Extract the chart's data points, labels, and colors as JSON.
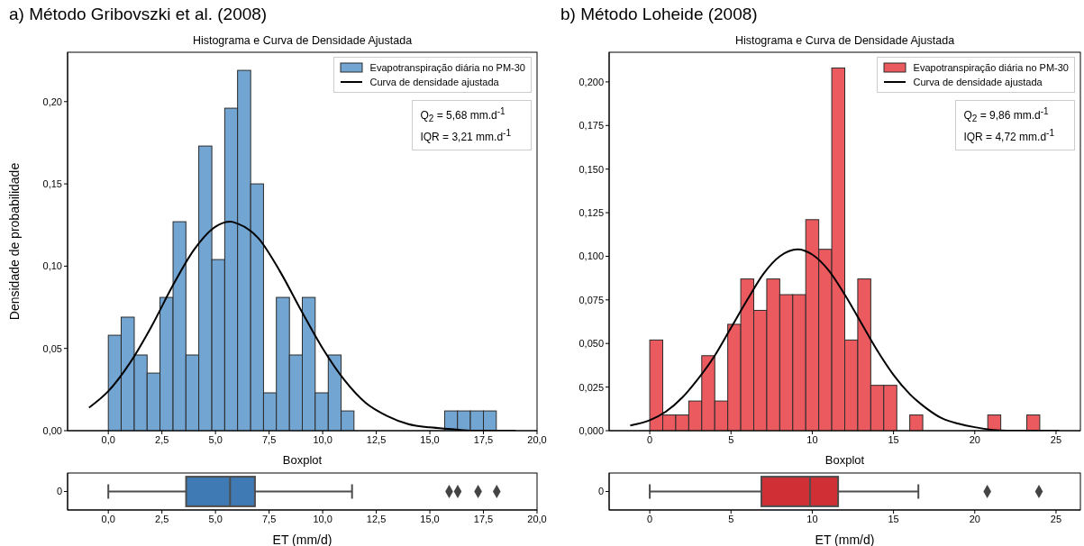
{
  "chart_data": [
    {
      "type": "histogram",
      "title": "a) Método Gribovszki et al. (2008)",
      "subtitle": "Histograma e Curva de Densidade Ajustada",
      "ylabel": "Densidade de probabilidade",
      "bins": [
        0,
        0.6,
        1.21,
        1.81,
        2.41,
        3.02,
        3.62,
        4.22,
        4.83,
        5.43,
        6.03,
        6.64,
        7.24,
        7.84,
        8.45,
        9.05,
        9.65,
        10.26,
        10.86,
        11.46,
        12.07,
        12.67,
        13.27,
        13.88,
        14.48,
        15.08,
        15.69,
        16.29,
        16.89,
        17.5,
        18.1
      ],
      "series": [
        {
          "name": "Evapotranspiração diária no PM-30",
          "type": "histogram",
          "color": "#72a5d1",
          "values": [
            0.058,
            0.069,
            0.046,
            0.035,
            0.081,
            0.127,
            0.046,
            0.173,
            0.104,
            0.196,
            0.219,
            0.15,
            0.023,
            0.081,
            0.046,
            0.081,
            0.023,
            0.046,
            0.012,
            0,
            0,
            0,
            0,
            0,
            0,
            0,
            0.012,
            0.012,
            0.012,
            0.012
          ]
        },
        {
          "name": "Curva de densidade ajustada",
          "type": "line",
          "color": "#000000",
          "x": [
            -0.9,
            0,
            1,
            2,
            3,
            4,
            5,
            5.7,
            6,
            7,
            8,
            9,
            10,
            11,
            12,
            13,
            14,
            15,
            16,
            17,
            18,
            19
          ],
          "values": [
            0.014,
            0.024,
            0.041,
            0.063,
            0.088,
            0.11,
            0.124,
            0.127,
            0.126,
            0.117,
            0.097,
            0.073,
            0.05,
            0.031,
            0.017,
            0.009,
            0.004,
            0.002,
            0.001,
            0,
            0,
            0
          ]
        }
      ],
      "xlim": [
        -1.9,
        20.0
      ],
      "xticks": [
        {
          "value": 0,
          "label": "0,0"
        },
        {
          "value": 2.5,
          "label": "2,5"
        },
        {
          "value": 5,
          "label": "5,0"
        },
        {
          "value": 7.5,
          "label": "7,5"
        },
        {
          "value": 10,
          "label": "10,0"
        },
        {
          "value": 12.5,
          "label": "12,5"
        },
        {
          "value": 15,
          "label": "15,0"
        },
        {
          "value": 17.5,
          "label": "17,5"
        },
        {
          "value": 20,
          "label": "20,0"
        }
      ],
      "ylim": [
        0,
        0.23
      ],
      "yticks": [
        {
          "value": 0,
          "label": "0,00"
        },
        {
          "value": 0.05,
          "label": "0,05"
        },
        {
          "value": 0.1,
          "label": "0,10"
        },
        {
          "value": 0.15,
          "label": "0,15"
        },
        {
          "value": 0.2,
          "label": "0,20"
        }
      ],
      "annotations": [
        "Q$_{2}$ = 5,68 mm.d$^{-1}$",
        "IQR = 3,21 mm.d$^{-1}$"
      ],
      "legend": "top right"
    },
    {
      "type": "histogram",
      "title": "b) Método Loheide (2008)",
      "subtitle": "Histograma e Curva de Densidade Ajustada",
      "bins": [
        0,
        0.8,
        1.6,
        2.4,
        3.2,
        4.0,
        4.8,
        5.6,
        6.4,
        7.2,
        8.0,
        8.8,
        9.6,
        10.4,
        11.2,
        12.0,
        12.8,
        13.6,
        14.4,
        15.2,
        16.0,
        16.8,
        17.6,
        18.4,
        19.2,
        20.0,
        20.8,
        21.6,
        22.4,
        23.2,
        24.0
      ],
      "series": [
        {
          "name": "Evapotranspiração diária no PM-30",
          "type": "histogram",
          "color": "#eb5a5f",
          "values": [
            0.052,
            0.009,
            0.009,
            0.017,
            0.043,
            0.017,
            0.061,
            0.087,
            0.069,
            0.087,
            0.078,
            0.078,
            0.121,
            0.104,
            0.208,
            0.052,
            0.087,
            0.026,
            0.026,
            0,
            0.009,
            0,
            0,
            0,
            0,
            0,
            0.009,
            0,
            0,
            0.009
          ]
        },
        {
          "name": "Curva de densidade ajustada",
          "type": "line",
          "color": "#000000",
          "x": [
            -1.2,
            0,
            1,
            2,
            3,
            4,
            5,
            6,
            7,
            8,
            9.1,
            10,
            11,
            12,
            13,
            14,
            15,
            16,
            17,
            18,
            19,
            20,
            22,
            25.2
          ],
          "values": [
            0.003,
            0.006,
            0.011,
            0.019,
            0.03,
            0.043,
            0.059,
            0.075,
            0.09,
            0.1,
            0.104,
            0.101,
            0.092,
            0.078,
            0.062,
            0.046,
            0.032,
            0.021,
            0.013,
            0.007,
            0.004,
            0.002,
            0,
            0
          ]
        }
      ],
      "xlim": [
        -2.5,
        26.5
      ],
      "xticks": [
        0,
        5,
        10,
        15,
        20,
        25
      ],
      "ylim": [
        0,
        0.217
      ],
      "yticks": [
        {
          "value": 0,
          "label": "0,000"
        },
        {
          "value": 0.025,
          "label": "0,025"
        },
        {
          "value": 0.05,
          "label": "0,050"
        },
        {
          "value": 0.075,
          "label": "0,075"
        },
        {
          "value": 0.1,
          "label": "0,100"
        },
        {
          "value": 0.125,
          "label": "0,125"
        },
        {
          "value": 0.15,
          "label": "0,150"
        },
        {
          "value": 0.175,
          "label": "0,175"
        },
        {
          "value": 0.2,
          "label": "0,200"
        }
      ],
      "annotations": [
        "Q$_{2}$ = 9,86 mm.d$^{-1}$",
        "IQR = 4,72 mm.d$^{-1}$"
      ],
      "legend": "top right"
    },
    {
      "type": "box",
      "title": "Boxplot",
      "xlabel": "ET (mm/d)",
      "orientation": "horizontal",
      "categories": [
        "0"
      ],
      "color": "#3f7ab5",
      "marker": "diamond",
      "boxes": [
        {
          "low": 0.0,
          "q1": 3.63,
          "median": 5.68,
          "q3": 6.84,
          "high": 11.37,
          "outliers": [
            15.9,
            16.3,
            17.25,
            18.12
          ]
        }
      ],
      "xlim": [
        -1.9,
        20.0
      ],
      "xticks": [
        {
          "value": 0,
          "label": "0,0"
        },
        {
          "value": 2.5,
          "label": "2,5"
        },
        {
          "value": 5,
          "label": "5,0"
        },
        {
          "value": 7.5,
          "label": "7,5"
        },
        {
          "value": 10,
          "label": "10,0"
        },
        {
          "value": 12.5,
          "label": "12,5"
        },
        {
          "value": 15,
          "label": "15,0"
        },
        {
          "value": 17.5,
          "label": "17,5"
        },
        {
          "value": 20,
          "label": "20,0"
        }
      ]
    },
    {
      "type": "box",
      "title": "Boxplot",
      "xlabel": "ET (mm/d)",
      "orientation": "horizontal",
      "categories": [
        "0"
      ],
      "color": "#d03035",
      "marker": "diamond",
      "boxes": [
        {
          "low": 0.0,
          "q1": 6.87,
          "median": 9.86,
          "q3": 11.59,
          "high": 16.53,
          "outliers": [
            20.77,
            23.95
          ]
        }
      ],
      "xlim": [
        -2.5,
        26.5
      ],
      "xticks": [
        0,
        5,
        10,
        15,
        20,
        25
      ]
    }
  ]
}
